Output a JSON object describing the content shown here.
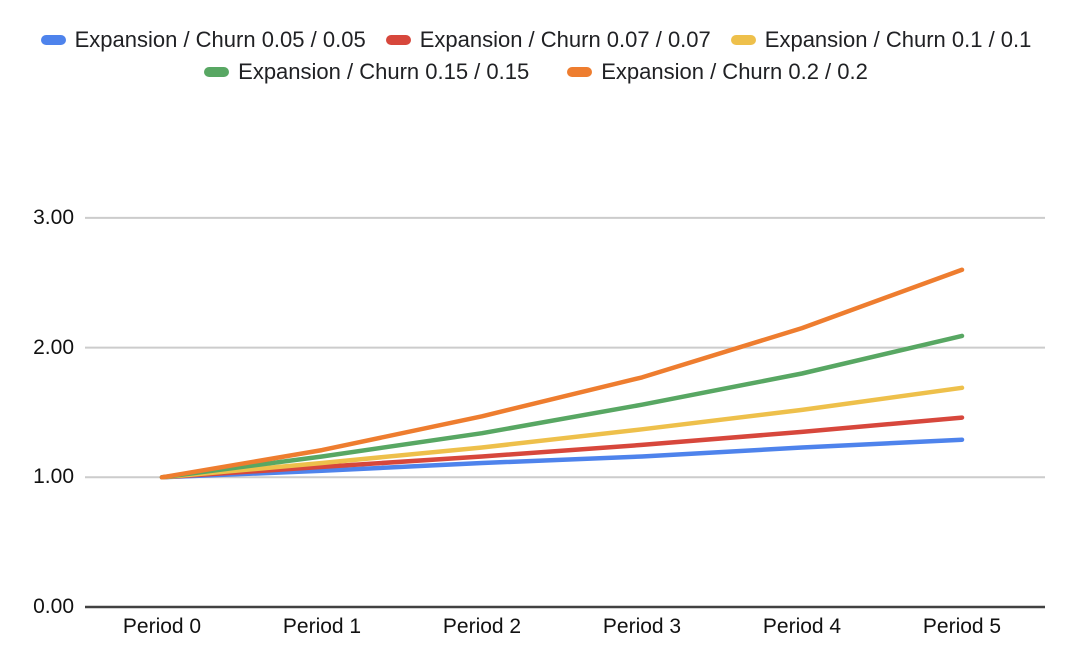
{
  "chart_data": {
    "type": "line",
    "title": "",
    "xlabel": "",
    "ylabel": "",
    "categories": [
      "Period 0",
      "Period 1",
      "Period 2",
      "Period 3",
      "Period 4",
      "Period 5"
    ],
    "series": [
      {
        "name": "Expansion / Churn 0.05 / 0.05",
        "color": "#4E83EC",
        "values": [
          1.0,
          1.05,
          1.11,
          1.16,
          1.23,
          1.29
        ]
      },
      {
        "name": "Expansion / Churn 0.07 / 0.07",
        "color": "#D7473C",
        "values": [
          1.0,
          1.08,
          1.16,
          1.25,
          1.35,
          1.46
        ]
      },
      {
        "name": "Expansion / Churn 0.1 / 0.1",
        "color": "#EEC04B",
        "values": [
          1.0,
          1.11,
          1.23,
          1.37,
          1.52,
          1.69
        ]
      },
      {
        "name": "Expansion / Churn 0.15 / 0.15",
        "color": "#58A763",
        "values": [
          1.0,
          1.16,
          1.34,
          1.56,
          1.8,
          2.09
        ]
      },
      {
        "name": "Expansion / Churn 0.2 / 0.2",
        "color": "#EE7D2F",
        "values": [
          1.0,
          1.21,
          1.47,
          1.77,
          2.15,
          2.6
        ]
      }
    ],
    "y_ticks": [
      {
        "label": "0.00",
        "value": 0
      },
      {
        "label": "1.00",
        "value": 1
      },
      {
        "label": "2.00",
        "value": 2
      },
      {
        "label": "3.00",
        "value": 3
      }
    ],
    "ylim": [
      0,
      3
    ],
    "grid": true,
    "legend_position": "top",
    "colors": {
      "gridline": "#CCCCCC",
      "axis_line": "#424242",
      "label_text": "#111111",
      "legend_text": "#202124",
      "background": "#FFFFFF"
    }
  }
}
